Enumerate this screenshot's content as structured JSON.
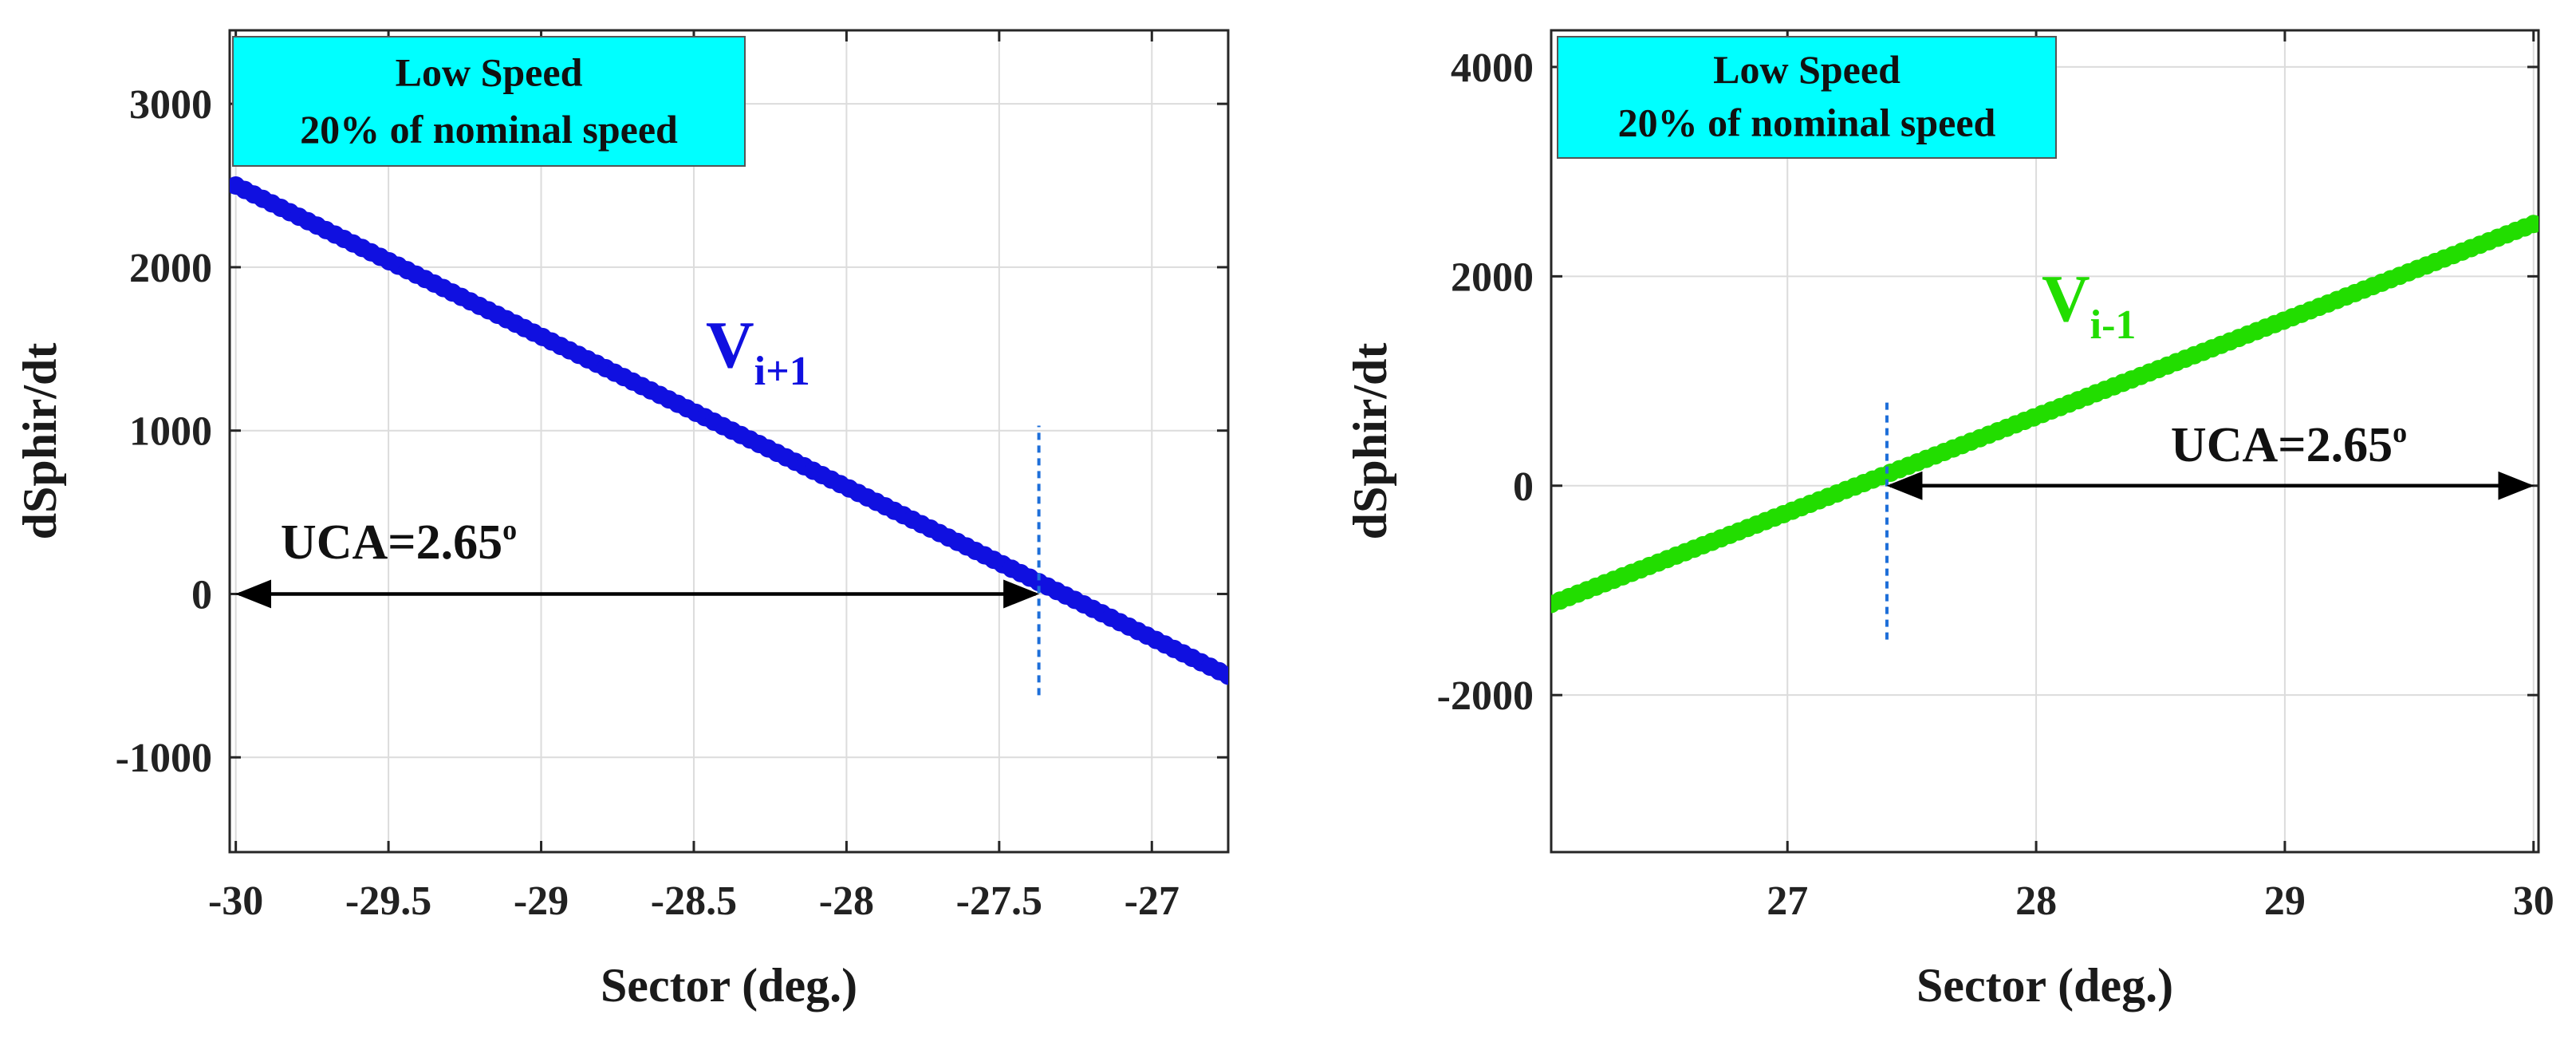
{
  "chart_data": [
    {
      "type": "line",
      "xlabel": "Sector (deg.)",
      "ylabel": "dSphir/dt",
      "xlim": [
        -30.02,
        -26.75
      ],
      "ylim": [
        -1580,
        3450
      ],
      "xticks": [
        -30,
        -29.5,
        -29,
        -28.5,
        -28,
        -27.5,
        -27
      ],
      "xtick_labels": [
        "-30",
        "-29.5",
        "-29",
        "-28.5",
        "-28",
        "-27.5",
        "-27"
      ],
      "yticks": [
        -1000,
        0,
        1000,
        2000,
        3000
      ],
      "ytick_labels": [
        "-1000",
        "0",
        "1000",
        "2000",
        "3000"
      ],
      "grid": true,
      "info_box": {
        "line1": "Low Speed",
        "line2": "20% of nominal speed",
        "color": "#00ffff"
      },
      "series": [
        {
          "label_main": "V",
          "label_sub": "i+1",
          "color": "#1010e0",
          "x": [
            -30,
            -26.75
          ],
          "y": [
            2500,
            -500
          ]
        }
      ],
      "crossing_marker": {
        "x": -27.37,
        "y_range": [
          -620,
          1030
        ],
        "color": "#1e6fd9"
      },
      "annotation": {
        "text": "UCA=2.65",
        "superscript": "o",
        "x_from": -30.0,
        "x_to": -27.37,
        "y": 0
      }
    },
    {
      "type": "line",
      "xlabel": "Sector (deg.)",
      "ylabel": "dSphir/dt",
      "xlim": [
        26.05,
        30.02
      ],
      "ylim": [
        -3500,
        4350
      ],
      "xticks": [
        27,
        28,
        29,
        30
      ],
      "xtick_labels": [
        "27",
        "28",
        "29",
        "30"
      ],
      "yticks": [
        -2000,
        0,
        2000,
        4000
      ],
      "ytick_labels": [
        "-2000",
        "0",
        "2000",
        "4000"
      ],
      "grid": true,
      "info_box": {
        "line1": "Low Speed",
        "line2": "20% of nominal speed",
        "color": "#00ffff"
      },
      "series": [
        {
          "label_main": "V",
          "label_sub": "i-1",
          "color": "#22dd00",
          "x": [
            26.05,
            30
          ],
          "y": [
            -1130,
            2500
          ]
        }
      ],
      "crossing_marker": {
        "x": 27.4,
        "y_range": [
          -1470,
          830
        ],
        "color": "#1e6fd9"
      },
      "annotation": {
        "text": "UCA=2.65",
        "superscript": "o",
        "x_from": 27.4,
        "x_to": 30.0,
        "y": 0
      }
    }
  ]
}
